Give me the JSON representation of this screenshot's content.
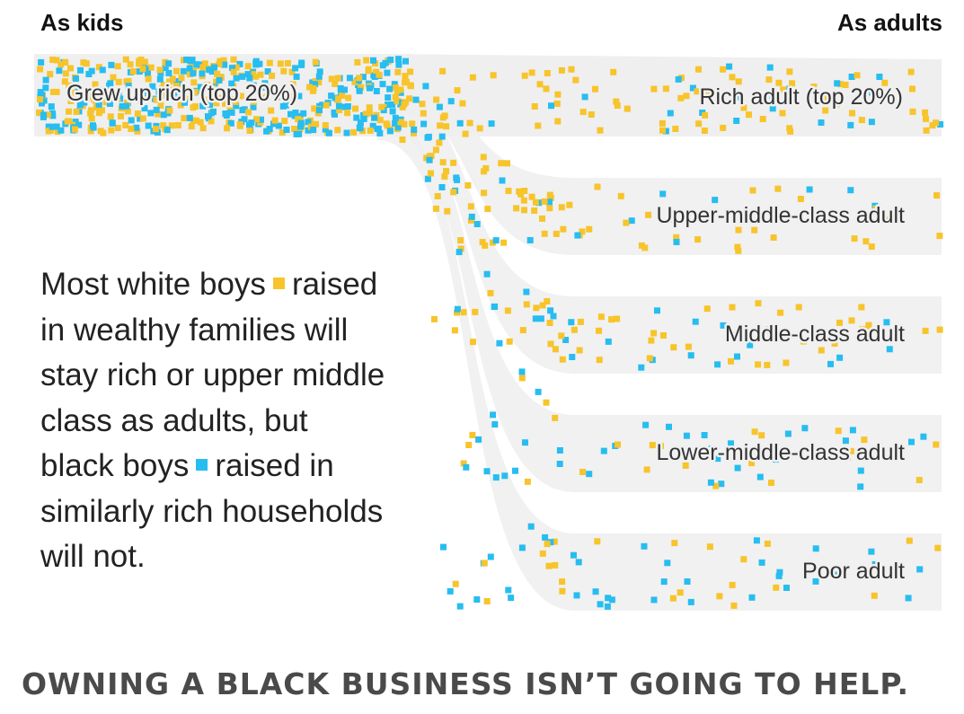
{
  "header": {
    "left": "As kids",
    "right": "As adults"
  },
  "origin": {
    "label": "Grew up rich (top 20%)"
  },
  "destinations": [
    {
      "label": "Rich adult (top 20%)",
      "white_points": 38,
      "black_points": 24
    },
    {
      "label": "Upper-middle-class adult",
      "white_points": 36,
      "black_points": 18
    },
    {
      "label": "Middle-class adult",
      "white_points": 30,
      "black_points": 28
    },
    {
      "label": "Lower-middle-class adult",
      "white_points": 16,
      "black_points": 28
    },
    {
      "label": "Poor adult",
      "white_points": 16,
      "black_points": 34
    }
  ],
  "legend": {
    "white": {
      "name": "white boys",
      "color": "#f7c42b"
    },
    "black": {
      "name": "black boys",
      "color": "#27bdf0"
    }
  },
  "description": {
    "line1_before": "Most white boys",
    "line1_after": "raised",
    "line2": "in wealthy families will",
    "line3": "stay rich or upper middle",
    "line4": "class as adults, but",
    "line5_before": "black boys",
    "line5_after": "raised in",
    "line6": "similarly rich households",
    "line7": "will not."
  },
  "footer": {
    "text": "OWNING A BLACK BUSINESS ISN’T GOING TO HELP."
  },
  "colors": {
    "band": "#efefef",
    "white_dot": "#f7c42b",
    "black_dot": "#27bdf0"
  }
}
